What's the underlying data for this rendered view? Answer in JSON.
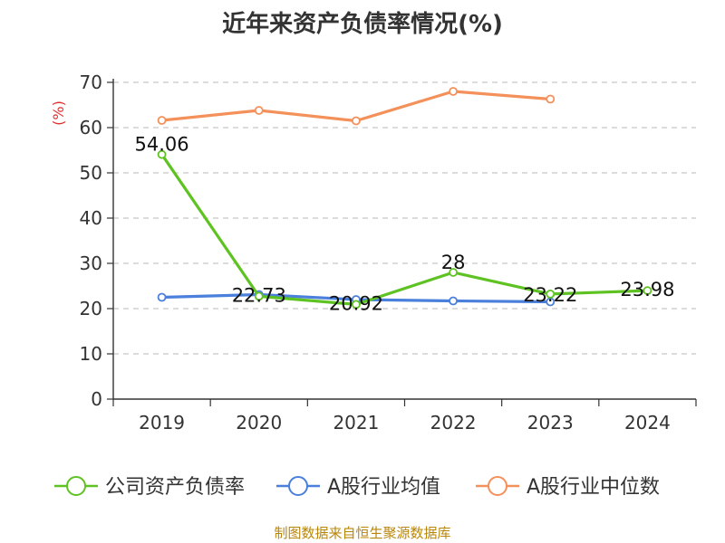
{
  "title": "近年来资产负债率情况(%)",
  "source": "制图数据来自恒生聚源数据库",
  "chart_data": {
    "type": "line",
    "title": "近年来资产负债率情况(%)",
    "ylabel": "(%)",
    "xlabel": "",
    "categories": [
      "2019",
      "2020",
      "2021",
      "2022",
      "2023",
      "2024"
    ],
    "yticks": [
      "0",
      "10",
      "20",
      "30",
      "40",
      "50",
      "60",
      "70"
    ],
    "ylim": [
      0,
      70
    ],
    "grid": true,
    "legend_position": "bottom",
    "series": [
      {
        "name": "公司资产负债率",
        "color": "#5ec322",
        "values": [
          54.06,
          22.73,
          20.92,
          28,
          23.22,
          23.98
        ],
        "labels": [
          "54.06",
          "22.73",
          "20.92",
          "28",
          "23.22",
          "23.98"
        ]
      },
      {
        "name": "A股行业均值",
        "color": "#4a7fdc",
        "values": [
          22.5,
          23.1,
          22.0,
          21.7,
          21.5,
          null
        ],
        "labels": []
      },
      {
        "name": "A股行业中位数",
        "color": "#f4905a",
        "values": [
          61.6,
          63.8,
          61.5,
          68.0,
          66.3,
          null
        ],
        "labels": []
      }
    ]
  }
}
